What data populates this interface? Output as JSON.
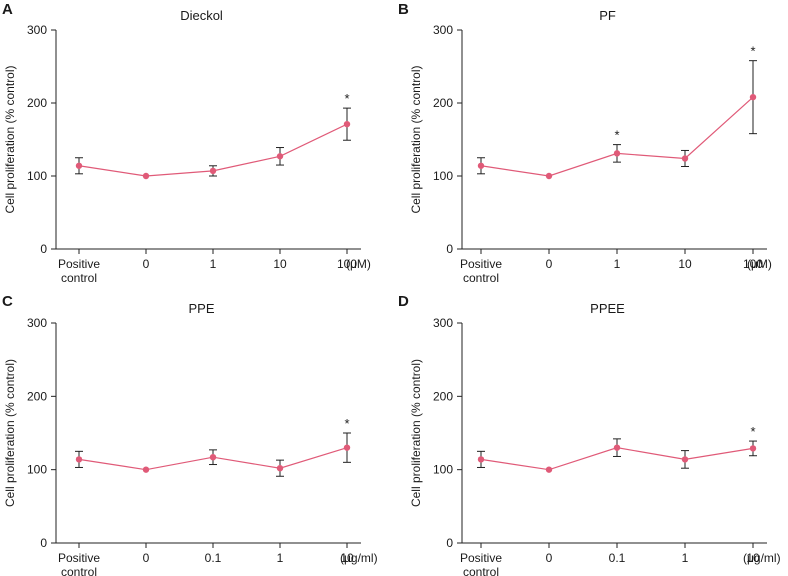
{
  "chart_data": [
    {
      "panel": "A",
      "type": "line",
      "title": "Dieckol",
      "ylabel": "Cell proliferation (% control)",
      "unit": "(μM)",
      "ylim": [
        0,
        300
      ],
      "yticks": [
        "0",
        "100",
        "200",
        "300"
      ],
      "categories": [
        [
          "Positive",
          "control"
        ],
        [
          "0"
        ],
        [
          "1"
        ],
        [
          "10"
        ],
        [
          "100"
        ]
      ],
      "values": [
        114,
        100,
        107,
        127,
        171
      ],
      "errors": [
        11,
        0,
        7,
        12,
        22
      ],
      "significant": [
        "",
        "",
        "",
        "",
        "*"
      ],
      "color": "#e05a78"
    },
    {
      "panel": "B",
      "type": "line",
      "title": "PF",
      "ylabel": "Cell proliferation (% control)",
      "unit": "(μM)",
      "ylim": [
        0,
        300
      ],
      "yticks": [
        "0",
        "100",
        "200",
        "300"
      ],
      "categories": [
        [
          "Positive",
          "control"
        ],
        [
          "0"
        ],
        [
          "1"
        ],
        [
          "10"
        ],
        [
          "100"
        ]
      ],
      "values": [
        114,
        100,
        131,
        124,
        208
      ],
      "errors": [
        11,
        0,
        12,
        11,
        50
      ],
      "significant": [
        "",
        "",
        "*",
        "",
        "*"
      ],
      "color": "#e05a78"
    },
    {
      "panel": "C",
      "type": "line",
      "title": "PPE",
      "ylabel": "Cell proliferation (% control)",
      "unit": "(μg/ml)",
      "ylim": [
        0,
        300
      ],
      "yticks": [
        "0",
        "100",
        "200",
        "300"
      ],
      "categories": [
        [
          "Positive",
          "control"
        ],
        [
          "0"
        ],
        [
          "0.1"
        ],
        [
          "1"
        ],
        [
          "10"
        ]
      ],
      "values": [
        114,
        100,
        117,
        102,
        130
      ],
      "errors": [
        11,
        0,
        10,
        11,
        20
      ],
      "significant": [
        "",
        "",
        "",
        "",
        "*"
      ],
      "color": "#e05a78"
    },
    {
      "panel": "D",
      "type": "line",
      "title": "PPEE",
      "ylabel": "Cell proliferation (% control)",
      "unit": "(μg/ml)",
      "ylim": [
        0,
        300
      ],
      "yticks": [
        "0",
        "100",
        "200",
        "300"
      ],
      "categories": [
        [
          "Positive",
          "control"
        ],
        [
          "0"
        ],
        [
          "0.1"
        ],
        [
          "1"
        ],
        [
          "10"
        ]
      ],
      "values": [
        114,
        100,
        130,
        114,
        129
      ],
      "errors": [
        11,
        0,
        12,
        12,
        10
      ],
      "significant": [
        "",
        "",
        "",
        "",
        "*"
      ],
      "color": "#e05a78"
    }
  ]
}
